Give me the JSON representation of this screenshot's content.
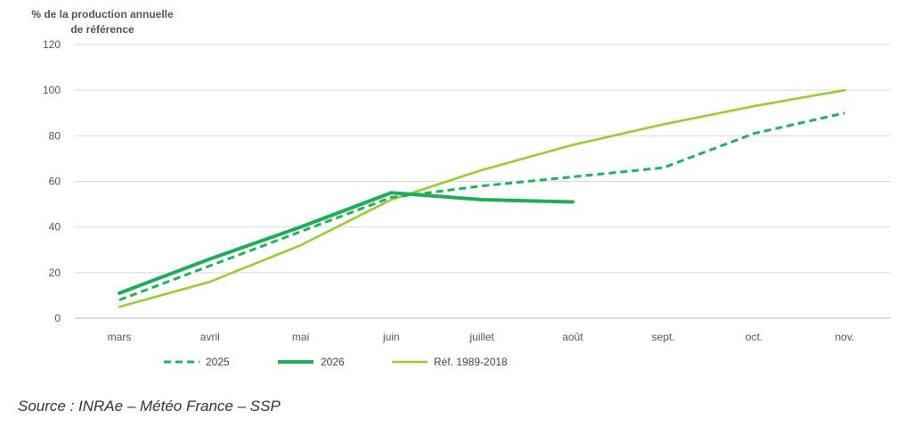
{
  "chart_data": {
    "type": "line",
    "ylabel_line1": "% de la production  annuelle",
    "ylabel_line2": "de référence",
    "ylim": [
      0,
      120
    ],
    "yticks": [
      0,
      20,
      40,
      60,
      80,
      100,
      120
    ],
    "grid": true,
    "legend_placement": "bottom-left",
    "categories": [
      "mars",
      "avril",
      "mai",
      "juin",
      "juillet",
      "août",
      "sept.",
      "oct.",
      "nov."
    ],
    "series": [
      {
        "name": "2025",
        "style": "dashed",
        "color": "#22b35a",
        "values": [
          8,
          23,
          38,
          53,
          58,
          62,
          66,
          81,
          90
        ]
      },
      {
        "name": "2026",
        "style": "solid-thick",
        "color": "#1fae57",
        "values": [
          11,
          26,
          40,
          55,
          52,
          51,
          null,
          null,
          null
        ]
      },
      {
        "name": "Réf. 1989-2018",
        "style": "solid",
        "color": "#9acd32",
        "values": [
          5,
          16,
          32,
          52,
          65,
          76,
          85,
          93,
          100
        ]
      }
    ]
  },
  "source": "Source : INRAe – Météo France – SSP"
}
